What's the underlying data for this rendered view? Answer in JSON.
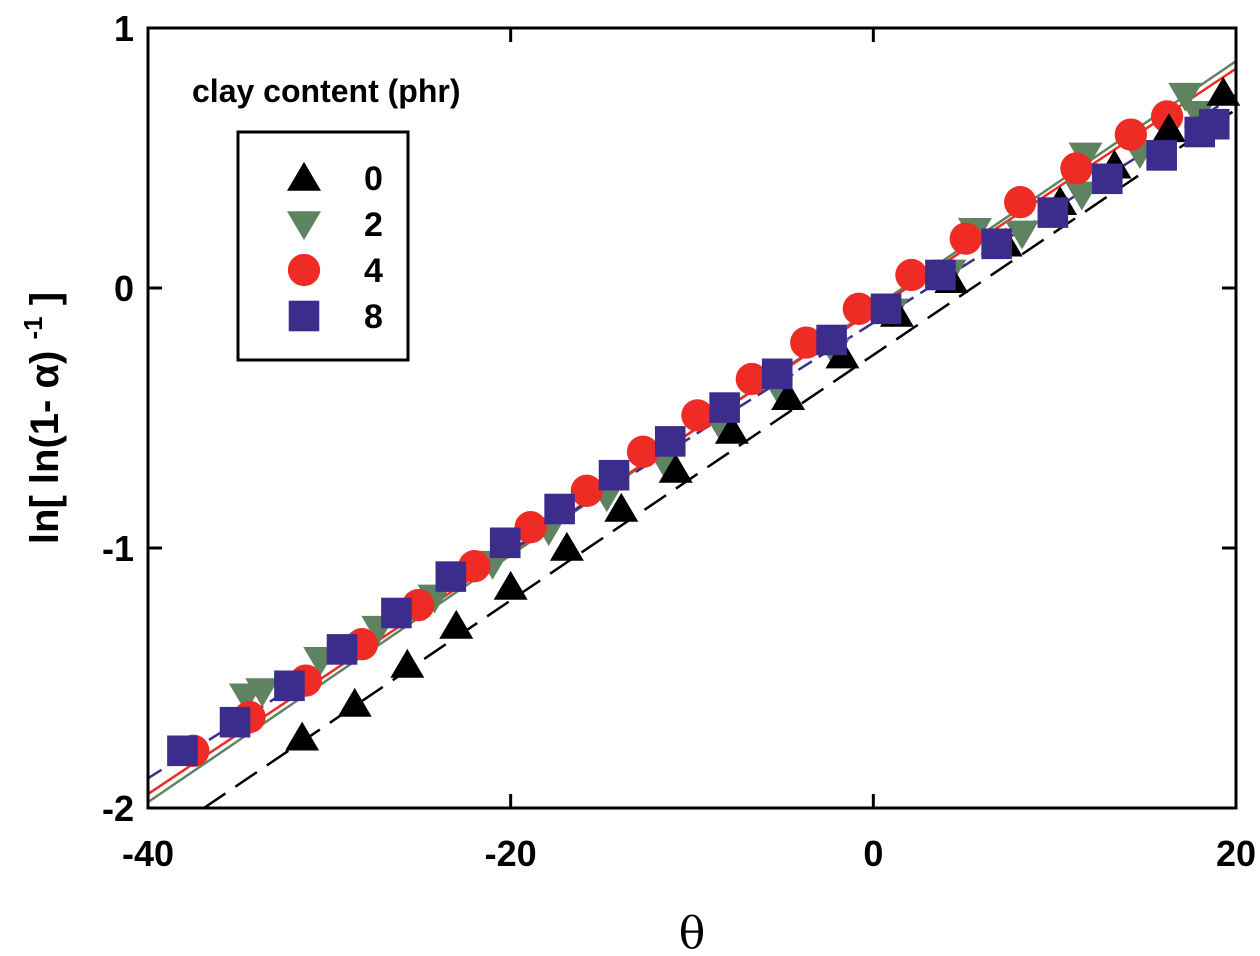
{
  "chart_data": {
    "type": "scatter",
    "xlabel": "θ",
    "ylabel": {
      "main": "ln[ ln(1- α)",
      "superscript": "-1",
      "closing": " ]"
    },
    "xlim": [
      -40,
      20
    ],
    "ylim": [
      -2,
      1
    ],
    "xticks": [
      -40,
      -20,
      0,
      20
    ],
    "yticks": [
      -2,
      -1,
      0,
      1
    ],
    "grid": false,
    "legend": {
      "title": "clay content (phr)",
      "placement": "top-left"
    },
    "series": [
      {
        "name": "0",
        "marker": "triangle-up",
        "color": "#000000",
        "line_style": "dashed",
        "fit": {
          "slope": 0.0472,
          "intercept": -0.2575
        },
        "points": [
          [
            -31.5,
            -1.73
          ],
          [
            -28.6,
            -1.6
          ],
          [
            -25.7,
            -1.45
          ],
          [
            -23,
            -1.3
          ],
          [
            -20,
            -1.15
          ],
          [
            -16.9,
            -1.0
          ],
          [
            -13.9,
            -0.85
          ],
          [
            -10.9,
            -0.7
          ],
          [
            -7.8,
            -0.55
          ],
          [
            -4.7,
            -0.42
          ],
          [
            -1.7,
            -0.26
          ],
          [
            1.3,
            -0.1
          ],
          [
            4.3,
            0.03
          ],
          [
            7.3,
            0.17
          ],
          [
            10.3,
            0.33
          ],
          [
            13.3,
            0.47
          ],
          [
            16.3,
            0.61
          ],
          [
            19.3,
            0.75
          ]
        ]
      },
      {
        "name": "2",
        "marker": "triangle-down",
        "color": "#5f8361",
        "line_style": "solid",
        "fit": {
          "slope": 0.0475,
          "intercept": -0.0775
        },
        "points": [
          [
            -34.6,
            -1.57
          ],
          [
            -33.7,
            -1.55
          ],
          [
            -30.5,
            -1.43
          ],
          [
            -27.3,
            -1.31
          ],
          [
            -24.2,
            -1.19
          ],
          [
            -21,
            -1.06
          ],
          [
            -17.9,
            -0.93
          ],
          [
            -14.7,
            -0.8
          ],
          [
            -11.6,
            -0.66
          ],
          [
            -8.5,
            -0.52
          ],
          [
            -5.3,
            -0.38
          ],
          [
            -2.2,
            -0.24
          ],
          [
            1,
            -0.09
          ],
          [
            4.2,
            0.06
          ],
          [
            8.2,
            0.21
          ],
          [
            11.5,
            0.36
          ],
          [
            14.7,
            0.52
          ],
          [
            17.9,
            0.67
          ],
          [
            5.6,
            0.22
          ],
          [
            11.7,
            0.51
          ],
          [
            17.2,
            0.74
          ]
        ]
      },
      {
        "name": "4",
        "marker": "circle",
        "color": "#ee2b24",
        "line_style": "solid",
        "fit": {
          "slope": 0.0465,
          "intercept": -0.0863
        },
        "points": [
          [
            -37.5,
            -1.78
          ],
          [
            -34.4,
            -1.65
          ],
          [
            -31.3,
            -1.51
          ],
          [
            -28.2,
            -1.37
          ],
          [
            -25.1,
            -1.22
          ],
          [
            -22,
            -1.07
          ],
          [
            -18.9,
            -0.92
          ],
          [
            -15.8,
            -0.78
          ],
          [
            -12.7,
            -0.63
          ],
          [
            -9.7,
            -0.49
          ],
          [
            -6.7,
            -0.35
          ],
          [
            -3.7,
            -0.21
          ],
          [
            -0.8,
            -0.08
          ],
          [
            2.1,
            0.05
          ],
          [
            5.1,
            0.19
          ],
          [
            8.1,
            0.33
          ],
          [
            11.2,
            0.46
          ],
          [
            14.2,
            0.59
          ],
          [
            16.2,
            0.66
          ]
        ]
      },
      {
        "name": "8",
        "marker": "square",
        "color": "#3c2d8c",
        "line_style": "dashed",
        "fit": {
          "slope": 0.0438,
          "intercept": -0.1336
        },
        "points": [
          [
            -38.1,
            -1.78
          ],
          [
            -35.2,
            -1.67
          ],
          [
            -32.2,
            -1.53
          ],
          [
            -29.3,
            -1.39
          ],
          [
            -26.3,
            -1.25
          ],
          [
            -23.3,
            -1.11
          ],
          [
            -20.3,
            -0.98
          ],
          [
            -17.3,
            -0.85
          ],
          [
            -14.3,
            -0.72
          ],
          [
            -11.2,
            -0.59
          ],
          [
            -8.2,
            -0.46
          ],
          [
            -5.3,
            -0.33
          ],
          [
            -2.3,
            -0.2
          ],
          [
            0.7,
            -0.08
          ],
          [
            3.7,
            0.05
          ],
          [
            6.8,
            0.17
          ],
          [
            9.9,
            0.29
          ],
          [
            12.9,
            0.42
          ],
          [
            15.9,
            0.51
          ],
          [
            18,
            0.6
          ],
          [
            18.8,
            0.63
          ]
        ]
      }
    ]
  }
}
